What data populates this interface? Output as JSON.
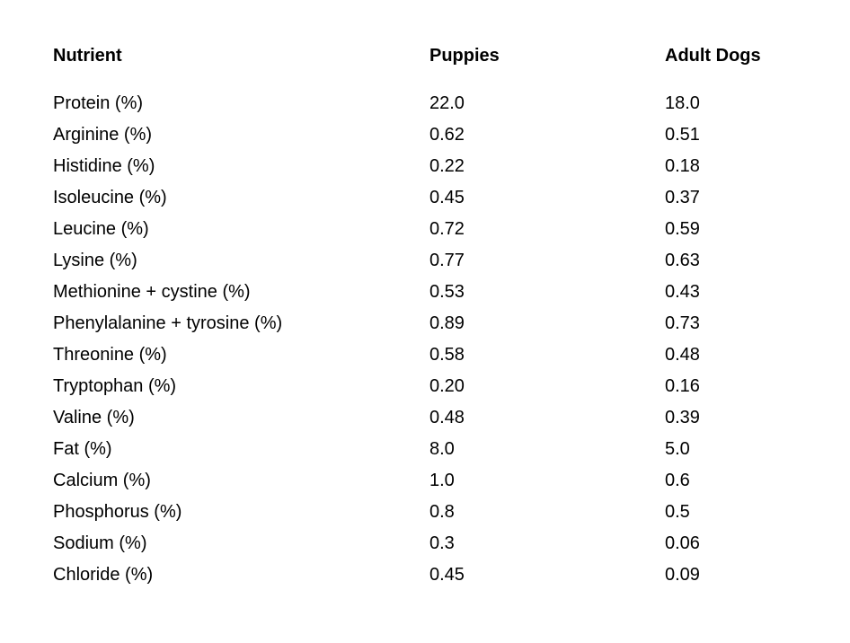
{
  "chart_data": {
    "type": "table",
    "columns": [
      "Nutrient",
      "Puppies",
      "Adult Dogs"
    ],
    "rows": [
      [
        "Protein (%)",
        "22.0",
        "18.0"
      ],
      [
        "Arginine (%)",
        "0.62",
        "0.51"
      ],
      [
        "Histidine (%)",
        "0.22",
        "0.18"
      ],
      [
        "Isoleucine (%)",
        "0.45",
        "0.37"
      ],
      [
        "Leucine (%)",
        "0.72",
        "0.59"
      ],
      [
        "Lysine (%)",
        "0.77",
        "0.63"
      ],
      [
        "Methionine + cystine (%)",
        "0.53",
        "0.43"
      ],
      [
        "Phenylalanine + tyrosine (%)",
        "0.89",
        "0.73"
      ],
      [
        "Threonine (%)",
        "0.58",
        "0.48"
      ],
      [
        "Tryptophan (%)",
        "0.20",
        "0.16"
      ],
      [
        "Valine (%)",
        "0.48",
        "0.39"
      ],
      [
        "Fat (%)",
        "8.0",
        "5.0"
      ],
      [
        "Calcium (%)",
        "1.0",
        "0.6"
      ],
      [
        "Phosphorus (%)",
        "0.8",
        "0.5"
      ],
      [
        "Sodium (%)",
        "0.3",
        "0.06"
      ],
      [
        "Chloride (%)",
        "0.45",
        "0.09"
      ]
    ],
    "title": "",
    "text_color": "#000000",
    "background_color": "#ffffff"
  }
}
